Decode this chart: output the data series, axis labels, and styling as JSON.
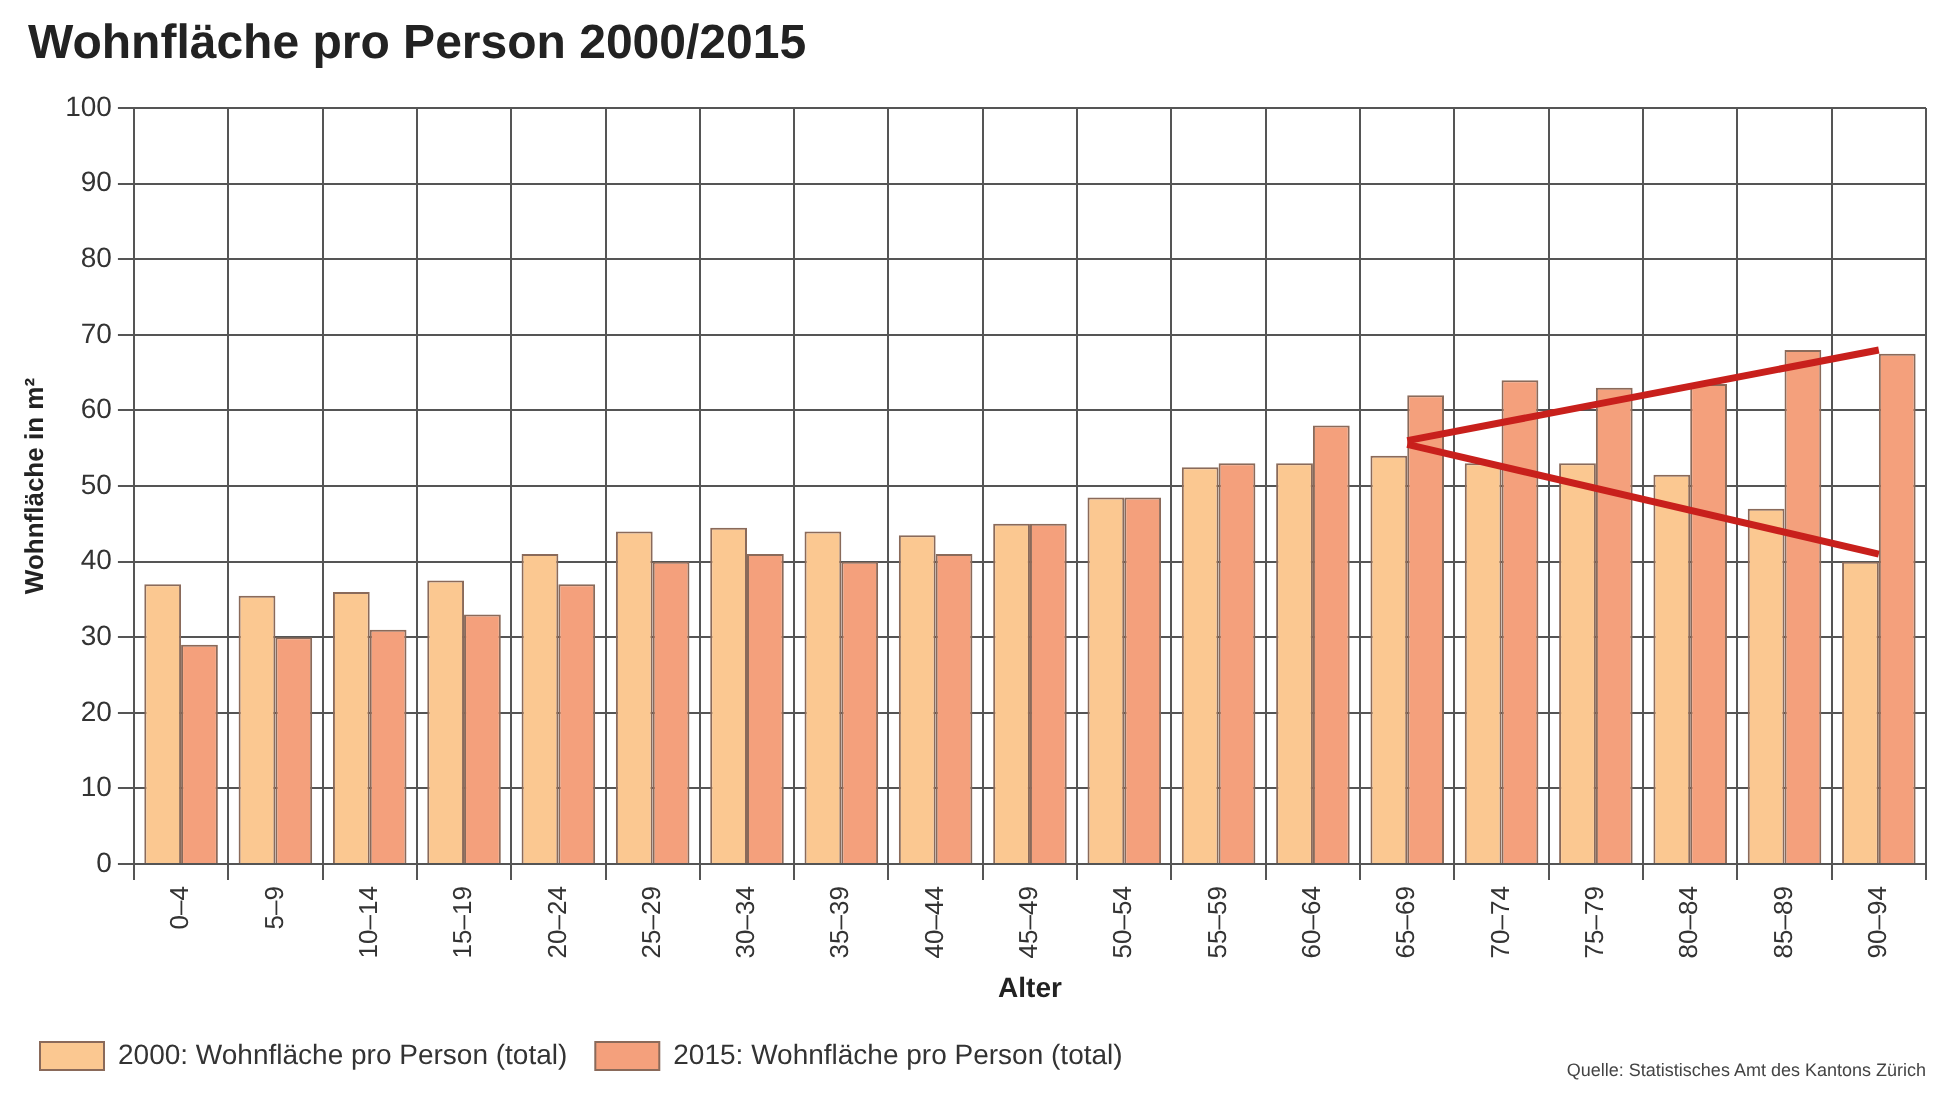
{
  "chart_data": {
    "type": "bar",
    "title": "Wohnfläche pro Person 2000/2015",
    "xlabel": "Alter",
    "ylabel": "Wohnfläche in m²",
    "categories": [
      "0–4",
      "5–9",
      "10–14",
      "15–19",
      "20–24",
      "25–29",
      "30–34",
      "35–39",
      "40–44",
      "45–49",
      "50–54",
      "55–59",
      "60–64",
      "65–69",
      "70–74",
      "75–79",
      "80–84",
      "85–89",
      "90–94"
    ],
    "series": [
      {
        "name": "2000: Wohnfläche pro Person (total)",
        "color": "#fbc891",
        "values": [
          37,
          35.5,
          36,
          37.5,
          41,
          44,
          44.5,
          44,
          43.5,
          45,
          48.5,
          52.5,
          53,
          54,
          53,
          53,
          51.5,
          47,
          40
        ]
      },
      {
        "name": "2015: Wohnfläche pro Person (total)",
        "color": "#f4a07c",
        "values": [
          29,
          30,
          31,
          33,
          37,
          40,
          41,
          40,
          41,
          45,
          48.5,
          53,
          58,
          62,
          64,
          63,
          63.5,
          68,
          67.5
        ]
      },
      {
        "type": "line",
        "color": "#c8201c",
        "values": [
          null,
          null,
          null,
          null,
          null,
          null,
          null,
          null,
          null,
          null,
          null,
          null,
          null,
          56,
          null,
          null,
          null,
          null,
          68
        ]
      },
      {
        "type": "line",
        "color": "#c8201c",
        "values": [
          null,
          null,
          null,
          null,
          null,
          null,
          null,
          null,
          null,
          null,
          null,
          null,
          null,
          55.5,
          null,
          null,
          null,
          null,
          41
        ]
      }
    ],
    "ylim": [
      0,
      100
    ],
    "yticks": [
      0,
      10,
      20,
      30,
      40,
      50,
      60,
      70,
      80,
      90,
      100
    ],
    "grid": true,
    "legend": "bottom left",
    "annotations": [
      "Quelle: Statistisches Amt des Kantons Zürich"
    ]
  }
}
